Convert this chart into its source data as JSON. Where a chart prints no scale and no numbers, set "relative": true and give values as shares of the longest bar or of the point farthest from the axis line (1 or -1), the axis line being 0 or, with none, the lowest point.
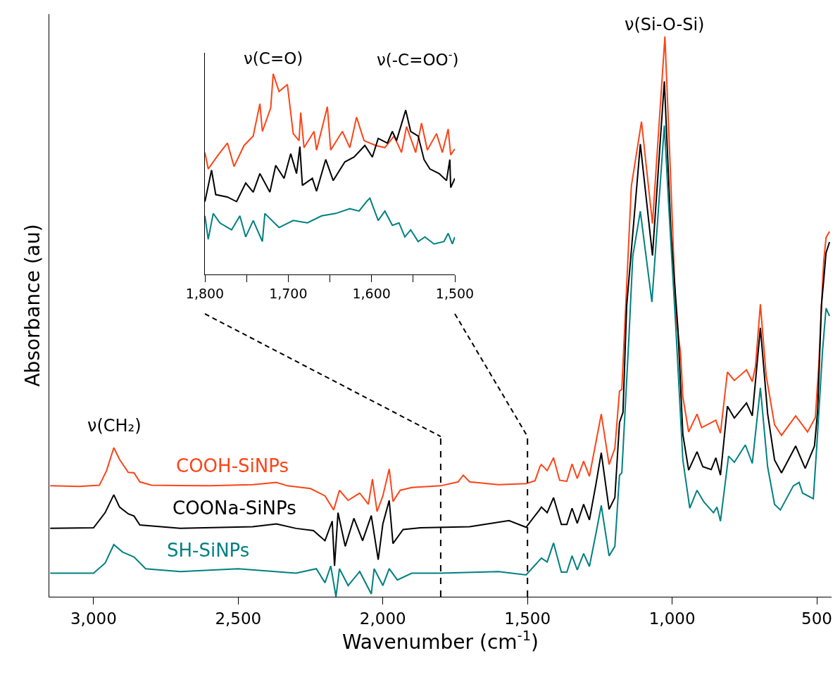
{
  "chart_data": [
    {
      "type": "line",
      "relative": true,
      "xlabel": "Wavenumber (cm$^{-1}$)",
      "ylabel": "Absorbance (au)",
      "xlim": [
        3153,
        449
      ],
      "legend": false,
      "line_style": "solid",
      "xticks": [
        {
          "value": 3000,
          "label": "3,000"
        },
        {
          "value": 2500,
          "label": "2,500"
        },
        {
          "value": 2000,
          "label": "2,000"
        },
        {
          "value": 1500,
          "label": "1,500"
        },
        {
          "value": 1000,
          "label": "1,000"
        },
        500
      ],
      "annotations": [
        "ν(CH₂)",
        "ν(Si-O-Si)"
      ],
      "ref_lines": [
        {
          "axis": "x",
          "value": 1800,
          "color": "#000000",
          "line_style": "dashed"
        },
        {
          "axis": "x",
          "value": 1500,
          "color": "#000000",
          "line_style": "dashed"
        }
      ],
      "series": [
        {
          "name": "COOH-SiNPs",
          "color": "#fc4417",
          "x": [
            3150,
            3050,
            2980,
            2955,
            2930,
            2910,
            2880,
            2860,
            2840,
            2800,
            2600,
            2450,
            2368,
            2330,
            2250,
            2200,
            2170,
            2150,
            2120,
            2080,
            2050,
            2036,
            2020,
            2000,
            1978,
            1965,
            1940,
            1900,
            1800,
            1740,
            1722,
            1700,
            1600,
            1505,
            1474,
            1457,
            1452,
            1432,
            1410,
            1389,
            1364,
            1346,
            1328,
            1306,
            1286,
            1263,
            1245,
            1218,
            1198,
            1182,
            1174,
            1141,
            1106,
            1068,
            1025,
            1004,
            987,
            971,
            963,
            943,
            914,
            898,
            849,
            833,
            809,
            785,
            743,
            723,
            712,
            695,
            675,
            646,
            622,
            573,
            532,
            505,
            493,
            480,
            476,
            468,
            456
          ],
          "values": [
            0.198,
            0.197,
            0.199,
            0.225,
            0.266,
            0.245,
            0.222,
            0.221,
            0.205,
            0.199,
            0.198,
            0.2,
            0.204,
            0.198,
            0.193,
            0.18,
            0.155,
            0.19,
            0.172,
            0.185,
            0.165,
            0.21,
            0.152,
            0.18,
            0.228,
            0.17,
            0.19,
            0.195,
            0.198,
            0.205,
            0.217,
            0.205,
            0.2,
            0.202,
            0.207,
            0.232,
            0.236,
            0.225,
            0.248,
            0.208,
            0.206,
            0.237,
            0.211,
            0.242,
            0.215,
            0.277,
            0.326,
            0.236,
            0.265,
            0.367,
            0.37,
            0.733,
            0.848,
            0.666,
            1.0,
            0.733,
            0.499,
            0.436,
            0.357,
            0.294,
            0.326,
            0.302,
            0.315,
            0.292,
            0.401,
            0.386,
            0.405,
            0.384,
            0.411,
            0.522,
            0.395,
            0.307,
            0.288,
            0.323,
            0.294,
            0.32,
            0.415,
            0.561,
            0.599,
            0.641,
            0.652
          ]
        },
        {
          "name": "COONa-SiNPs",
          "color": "#000000",
          "x": [
            3150,
            3000,
            2960,
            2930,
            2910,
            2880,
            2860,
            2840,
            2700,
            2450,
            2368,
            2300,
            2240,
            2200,
            2175,
            2167,
            2155,
            2130,
            2100,
            2070,
            2040,
            2016,
            2000,
            1978,
            1965,
            1930,
            1870,
            1700,
            1564,
            1505,
            1460,
            1452,
            1432,
            1410,
            1383,
            1364,
            1346,
            1328,
            1306,
            1286,
            1263,
            1245,
            1218,
            1198,
            1182,
            1170,
            1157,
            1110,
            1068,
            1027,
            1004,
            980,
            963,
            943,
            914,
            894,
            865,
            849,
            833,
            809,
            785,
            743,
            723,
            695,
            670,
            646,
            622,
            573,
            540,
            508,
            497,
            484,
            476,
            468,
            456
          ],
          "values": [
            0.122,
            0.123,
            0.15,
            0.182,
            0.16,
            0.148,
            0.144,
            0.128,
            0.122,
            0.125,
            0.13,
            0.122,
            0.118,
            0.1,
            0.135,
            0.055,
            0.15,
            0.09,
            0.14,
            0.1,
            0.145,
            0.066,
            0.13,
            0.172,
            0.095,
            0.12,
            0.123,
            0.125,
            0.136,
            0.124,
            0.154,
            0.16,
            0.15,
            0.177,
            0.129,
            0.129,
            0.158,
            0.131,
            0.165,
            0.137,
            0.202,
            0.257,
            0.156,
            0.177,
            0.311,
            0.329,
            0.52,
            0.808,
            0.609,
            0.92,
            0.649,
            0.478,
            0.29,
            0.226,
            0.259,
            0.232,
            0.227,
            0.248,
            0.217,
            0.34,
            0.319,
            0.346,
            0.323,
            0.48,
            0.327,
            0.244,
            0.221,
            0.269,
            0.229,
            0.269,
            0.332,
            0.52,
            0.566,
            0.614,
            0.633
          ]
        },
        {
          "name": "SH-SiNPs",
          "color": "#008080",
          "x": [
            3150,
            3000,
            2960,
            2930,
            2900,
            2860,
            2820,
            2700,
            2500,
            2300,
            2230,
            2200,
            2180,
            2162,
            2150,
            2120,
            2080,
            2040,
            2030,
            2000,
            1978,
            1950,
            1900,
            1800,
            1600,
            1505,
            1452,
            1432,
            1410,
            1383,
            1364,
            1346,
            1328,
            1306,
            1286,
            1263,
            1245,
            1218,
            1198,
            1182,
            1174,
            1150,
            1136,
            1110,
            1070,
            1027,
            1011,
            987,
            963,
            939,
            914,
            890,
            857,
            845,
            833,
            805,
            785,
            747,
            723,
            695,
            670,
            646,
            626,
            581,
            561,
            549,
            512,
            500,
            480,
            468,
            456
          ],
          "values": [
            0.042,
            0.042,
            0.06,
            0.093,
            0.08,
            0.071,
            0.05,
            0.045,
            0.05,
            0.042,
            0.05,
            0.025,
            0.055,
            0.0,
            0.05,
            0.02,
            0.045,
            0.005,
            0.05,
            0.02,
            0.05,
            0.03,
            0.042,
            0.042,
            0.045,
            0.039,
            0.069,
            0.062,
            0.096,
            0.044,
            0.044,
            0.073,
            0.048,
            0.077,
            0.054,
            0.114,
            0.163,
            0.073,
            0.09,
            0.217,
            0.221,
            0.457,
            0.608,
            0.688,
            0.526,
            0.841,
            0.691,
            0.478,
            0.244,
            0.158,
            0.19,
            0.169,
            0.15,
            0.16,
            0.135,
            0.251,
            0.24,
            0.271,
            0.238,
            0.373,
            0.232,
            0.165,
            0.155,
            0.198,
            0.204,
            0.185,
            0.175,
            0.269,
            0.44,
            0.515,
            0.501
          ]
        }
      ]
    },
    {
      "type": "line",
      "relative": true,
      "xlim": [
        1800,
        1500
      ],
      "legend": false,
      "line_style": "solid",
      "xticks": [
        {
          "value": 1800,
          "label": "1,800"
        },
        {
          "value": 1750,
          "label": null
        },
        {
          "value": 1700,
          "label": "1,700"
        },
        {
          "value": 1650,
          "label": null
        },
        {
          "value": 1600,
          "label": "1,600"
        },
        {
          "value": 1550,
          "label": null
        },
        {
          "value": 1500,
          "label": "1,500"
        }
      ],
      "annotations": [
        "ν(C=O)",
        "ν(-C=OO$^{-}$)"
      ],
      "series": [
        {
          "color": "#fc4417",
          "x": [
            1800,
            1796,
            1784,
            1773,
            1765,
            1753,
            1742,
            1734,
            1731,
            1721,
            1718,
            1711,
            1701,
            1694,
            1687,
            1685,
            1681,
            1669,
            1666,
            1653,
            1649,
            1635,
            1626,
            1618,
            1609,
            1595,
            1584,
            1573,
            1564,
            1558,
            1547,
            1540,
            1533,
            1522,
            1515,
            1508,
            1505,
            1500
          ],
          "values": [
            0.608,
            0.526,
            0.596,
            0.655,
            0.538,
            0.643,
            0.69,
            0.851,
            0.713,
            0.83,
            1.0,
            0.912,
            0.947,
            0.702,
            0.667,
            0.807,
            0.632,
            0.713,
            0.62,
            0.836,
            0.62,
            0.713,
            0.632,
            0.784,
            0.667,
            0.643,
            0.632,
            0.69,
            0.608,
            0.737,
            0.608,
            0.754,
            0.62,
            0.702,
            0.608,
            0.725,
            0.596,
            0.626
          ]
        },
        {
          "color": "#000000",
          "x": [
            1800,
            1792,
            1787,
            1773,
            1762,
            1751,
            1742,
            1734,
            1722,
            1715,
            1705,
            1697,
            1690,
            1686,
            1683,
            1671,
            1666,
            1655,
            1646,
            1632,
            1621,
            1608,
            1599,
            1592,
            1581,
            1575,
            1570,
            1559,
            1553,
            1544,
            1537,
            1530,
            1519,
            1510,
            1506,
            1505,
            1500
          ],
          "values": [
            0.363,
            0.52,
            0.398,
            0.386,
            0.363,
            0.456,
            0.41,
            0.503,
            0.41,
            0.544,
            0.479,
            0.602,
            0.503,
            0.637,
            0.444,
            0.479,
            0.415,
            0.573,
            0.468,
            0.561,
            0.585,
            0.643,
            0.585,
            0.678,
            0.655,
            0.713,
            0.667,
            0.819,
            0.713,
            0.69,
            0.573,
            0.526,
            0.503,
            0.468,
            0.573,
            0.433,
            0.479
          ]
        },
        {
          "color": "#008080",
          "x": [
            1800,
            1796,
            1790,
            1782,
            1768,
            1758,
            1751,
            1742,
            1731,
            1728,
            1711,
            1694,
            1677,
            1660,
            1643,
            1626,
            1615,
            1606,
            1602,
            1592,
            1584,
            1575,
            1567,
            1560,
            1553,
            1544,
            1536,
            1525,
            1513,
            1508,
            1503,
            1500
          ],
          "values": [
            0.292,
            0.175,
            0.304,
            0.257,
            0.222,
            0.292,
            0.187,
            0.269,
            0.164,
            0.304,
            0.234,
            0.269,
            0.257,
            0.292,
            0.304,
            0.328,
            0.316,
            0.363,
            0.38,
            0.269,
            0.316,
            0.245,
            0.257,
            0.187,
            0.222,
            0.164,
            0.187,
            0.152,
            0.164,
            0.205,
            0.152,
            0.187
          ]
        }
      ]
    }
  ]
}
